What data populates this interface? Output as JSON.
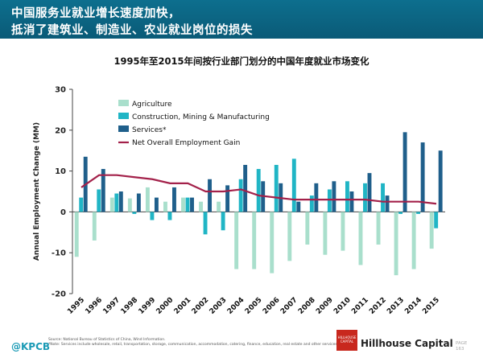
{
  "header": {
    "line1": "中国服务业就业增长速度加快，",
    "line2": "抵消了建筑业、制造业、农业就业岗位的损失"
  },
  "chart_data": {
    "type": "bar",
    "title": "1995年至2015年间按行业部门划分的中国年度就业市场变化",
    "ylabel": "Annual Employment Change (MM)",
    "xlabel": "",
    "ylim": [
      -20,
      30
    ],
    "yticks": [
      "30",
      "20",
      "10",
      "0",
      "-10",
      "-20"
    ],
    "ytick_values": [
      30,
      20,
      10,
      0,
      -10,
      -20
    ],
    "categories": [
      "1995",
      "1996",
      "1997",
      "1998",
      "1999",
      "2000",
      "2001",
      "2002",
      "2003",
      "2004",
      "2005",
      "2006",
      "2007",
      "2008",
      "2009",
      "2010",
      "2011",
      "2012",
      "2013",
      "2014",
      "2015"
    ],
    "series": [
      {
        "name": "Agriculture",
        "color": "#a9dfcc",
        "values": [
          -11,
          -7,
          3.5,
          3.3,
          6,
          2.5,
          3.5,
          2.5,
          2.5,
          -14,
          -14,
          -15,
          -12,
          -8,
          -10.5,
          -9.5,
          -13,
          -8,
          -15.5,
          -14,
          -9
        ]
      },
      {
        "name": "Construction, Mining & Manufacturing",
        "color": "#20b5c5",
        "values": [
          3.5,
          5.5,
          4.5,
          -0.5,
          -2,
          -2,
          3.5,
          -5.5,
          -4.5,
          8,
          10.5,
          11.5,
          13,
          4,
          5.5,
          7.5,
          7,
          7,
          -0.5,
          -0.5,
          -4
        ]
      },
      {
        "name": "Services*",
        "color": "#1f5f8b",
        "values": [
          13.5,
          10.5,
          5,
          4.5,
          3.5,
          6,
          3.5,
          8,
          6.5,
          11.5,
          7.5,
          7,
          2.5,
          7,
          7.5,
          5,
          9.5,
          4,
          19.5,
          17,
          15
        ]
      },
      {
        "name": "Net Overall Employment Gain",
        "color": "#a3214a",
        "type": "line",
        "values": [
          6,
          9,
          9,
          8.5,
          8,
          7,
          7,
          5,
          5,
          5.5,
          4,
          3.5,
          3,
          3,
          3,
          3,
          3,
          2.5,
          2.5,
          2.5,
          2
        ]
      }
    ],
    "legend_position": "top-left",
    "grid": false
  },
  "footer": {
    "logo": "@KPCB",
    "source_line1": "Source: National Bureau of Statistics of China, Wind Information.",
    "source_line2": "*Note: Services include wholesale, retail, transportation, storage, communication, accommodation, catering, finance, education, real estate and other services.",
    "brand_box": "HILLHOUSE CAPITAL",
    "brand_name": "Hillhouse Capital",
    "page_label": "PAGE",
    "page_number": "163"
  }
}
